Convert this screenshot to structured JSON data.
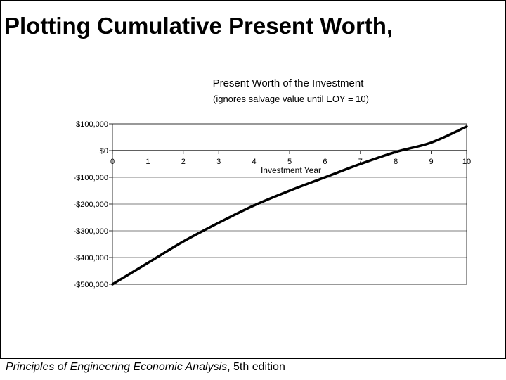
{
  "slide": {
    "title": "Plotting Cumulative Present Worth,",
    "footer_book": "Principles of Engineering Economic Analysis",
    "footer_edition": ", 5th edition"
  },
  "chart_data": {
    "type": "line",
    "title": "Present Worth of the Investment",
    "subtitle": "(ignores salvage value until EOY = 10)",
    "xlabel": "Investment Year",
    "ylabel": "",
    "x": [
      0,
      1,
      2,
      3,
      4,
      5,
      6,
      7,
      8,
      9,
      10
    ],
    "series": [
      {
        "values": [
          -500000,
          -420000,
          -340000,
          -270000,
          -205000,
          -150000,
          -100000,
          -50000,
          -5000,
          30000,
          90000
        ]
      }
    ],
    "x_ticks": [
      "0",
      "1",
      "2",
      "3",
      "4",
      "5",
      "6",
      "7",
      "8",
      "9",
      "10"
    ],
    "y_ticks": [
      {
        "value": 100000,
        "label": "$100,000"
      },
      {
        "value": 0,
        "label": "$0"
      },
      {
        "value": -100000,
        "label": "-$100,000"
      },
      {
        "value": -200000,
        "label": "-$200,000"
      },
      {
        "value": -300000,
        "label": "-$300,000"
      },
      {
        "value": -400000,
        "label": "-$400,000"
      },
      {
        "value": -500000,
        "label": "-$500,000"
      }
    ],
    "xlim": [
      0,
      10
    ],
    "ylim": [
      -500000,
      100000
    ],
    "grid": "horizontal",
    "line_color": "#000000"
  }
}
